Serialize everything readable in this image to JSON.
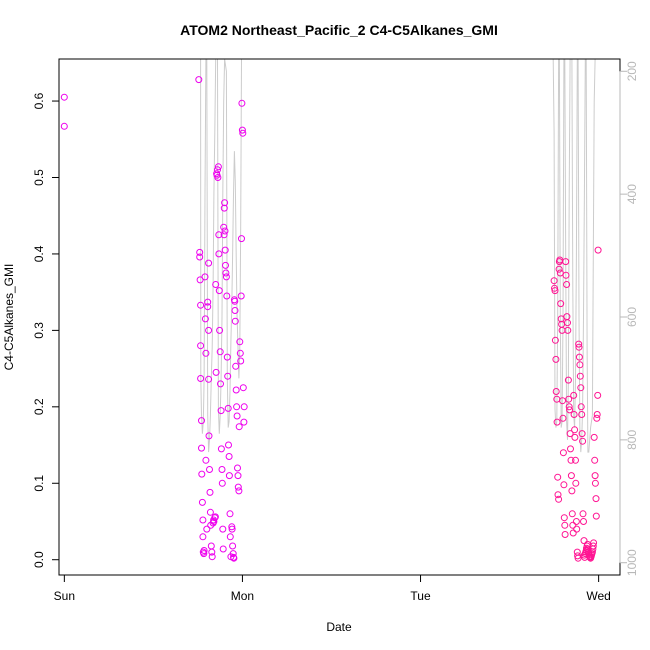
{
  "chart_data": {
    "type": "scatter",
    "title": "ATOM2 Northeast_Pacific_2 C4-C5Alkanes_GMI",
    "xlabel": "Date",
    "ylabel": "C4-C5Alkanes_GMI",
    "x_unit": "days since Sun 00:00",
    "xlim": [
      -0.03,
      3.12
    ],
    "ylim": [
      -0.02,
      0.655
    ],
    "x_ticks": [
      {
        "value": 0,
        "label": "Sun"
      },
      {
        "value": 1,
        "label": "Mon"
      },
      {
        "value": 2,
        "label": "Tue"
      },
      {
        "value": 3,
        "label": "Wed"
      }
    ],
    "y_ticks": [
      0.0,
      0.1,
      0.2,
      0.3,
      0.4,
      0.5,
      0.6
    ],
    "y_tick_labels": [
      "0.0",
      "0.1",
      "0.2",
      "0.3",
      "0.4",
      "0.5",
      "0.6"
    ],
    "right_axis": {
      "reversed": true,
      "lim": [
        1020,
        180
      ],
      "ticks": [
        200,
        400,
        600,
        800,
        1000
      ],
      "tick_labels": [
        "200",
        "400",
        "600",
        "800",
        "1000"
      ],
      "color": "#b8b8b8"
    },
    "colors": {
      "points_early": "#ee00ee",
      "points_late": "#ff1493",
      "pressure_line": "#cccccc"
    },
    "series": [
      {
        "name": "",
        "type": "scatter",
        "points": [
          [
            0.0,
            0.605
          ],
          [
            0.0,
            0.567
          ],
          [
            0.755,
            0.628
          ],
          [
            0.76,
            0.402
          ],
          [
            0.76,
            0.396
          ],
          [
            0.762,
            0.366
          ],
          [
            0.765,
            0.333
          ],
          [
            0.765,
            0.28
          ],
          [
            0.765,
            0.237
          ],
          [
            0.77,
            0.182
          ],
          [
            0.77,
            0.146
          ],
          [
            0.772,
            0.112
          ],
          [
            0.775,
            0.075
          ],
          [
            0.778,
            0.052
          ],
          [
            0.778,
            0.03
          ],
          [
            0.78,
            0.01
          ],
          [
            0.783,
            0.008
          ],
          [
            0.785,
            0.012
          ],
          [
            0.79,
            0.37
          ],
          [
            0.792,
            0.315
          ],
          [
            0.795,
            0.27
          ],
          [
            0.795,
            0.13
          ],
          [
            0.8,
            0.04
          ],
          [
            0.805,
            0.337
          ],
          [
            0.805,
            0.331
          ],
          [
            0.81,
            0.388
          ],
          [
            0.81,
            0.3
          ],
          [
            0.81,
            0.236
          ],
          [
            0.812,
            0.162
          ],
          [
            0.815,
            0.118
          ],
          [
            0.818,
            0.088
          ],
          [
            0.82,
            0.062
          ],
          [
            0.822,
            0.045
          ],
          [
            0.825,
            0.018
          ],
          [
            0.828,
            0.01
          ],
          [
            0.83,
            0.004
          ],
          [
            0.835,
            0.048
          ],
          [
            0.838,
            0.052
          ],
          [
            0.84,
            0.05
          ],
          [
            0.845,
            0.055
          ],
          [
            0.848,
            0.056
          ],
          [
            0.85,
            0.36
          ],
          [
            0.852,
            0.245
          ],
          [
            0.855,
            0.505
          ],
          [
            0.857,
            0.503
          ],
          [
            0.86,
            0.51
          ],
          [
            0.862,
            0.5
          ],
          [
            0.865,
            0.514
          ],
          [
            0.867,
            0.425
          ],
          [
            0.868,
            0.4
          ],
          [
            0.87,
            0.352
          ],
          [
            0.872,
            0.3
          ],
          [
            0.875,
            0.272
          ],
          [
            0.877,
            0.23
          ],
          [
            0.88,
            0.195
          ],
          [
            0.882,
            0.145
          ],
          [
            0.885,
            0.118
          ],
          [
            0.887,
            0.1
          ],
          [
            0.89,
            0.04
          ],
          [
            0.892,
            0.014
          ],
          [
            0.895,
            0.435
          ],
          [
            0.897,
            0.425
          ],
          [
            0.898,
            0.46
          ],
          [
            0.9,
            0.467
          ],
          [
            0.902,
            0.43
          ],
          [
            0.903,
            0.405
          ],
          [
            0.905,
            0.385
          ],
          [
            0.907,
            0.375
          ],
          [
            0.91,
            0.37
          ],
          [
            0.912,
            0.345
          ],
          [
            0.915,
            0.265
          ],
          [
            0.917,
            0.24
          ],
          [
            0.92,
            0.198
          ],
          [
            0.922,
            0.15
          ],
          [
            0.925,
            0.135
          ],
          [
            0.927,
            0.11
          ],
          [
            0.93,
            0.06
          ],
          [
            0.932,
            0.03
          ],
          [
            0.935,
            0.004
          ],
          [
            0.94,
            0.043
          ],
          [
            0.942,
            0.04
          ],
          [
            0.945,
            0.018
          ],
          [
            0.948,
            0.008
          ],
          [
            0.95,
            0.003
          ],
          [
            0.952,
            0.002
          ],
          [
            0.955,
            0.34
          ],
          [
            0.957,
            0.338
          ],
          [
            0.958,
            0.326
          ],
          [
            0.96,
            0.312
          ],
          [
            0.962,
            0.253
          ],
          [
            0.965,
            0.222
          ],
          [
            0.967,
            0.2
          ],
          [
            0.97,
            0.188
          ],
          [
            0.972,
            0.12
          ],
          [
            0.975,
            0.11
          ],
          [
            0.977,
            0.095
          ],
          [
            0.98,
            0.09
          ],
          [
            0.982,
            0.174
          ],
          [
            0.985,
            0.285
          ],
          [
            0.988,
            0.27
          ],
          [
            0.99,
            0.26
          ],
          [
            0.993,
            0.345
          ],
          [
            0.995,
            0.42
          ],
          [
            0.997,
            0.597
          ],
          [
            1.0,
            0.562
          ],
          [
            1.002,
            0.558
          ],
          [
            1.005,
            0.225
          ],
          [
            1.008,
            0.18
          ],
          [
            1.01,
            0.2
          ]
        ]
      },
      {
        "name": "",
        "type": "scatter",
        "points": [
          [
            2.75,
            0.365
          ],
          [
            2.752,
            0.355
          ],
          [
            2.755,
            0.352
          ],
          [
            2.757,
            0.287
          ],
          [
            2.76,
            0.262
          ],
          [
            2.762,
            0.22
          ],
          [
            2.765,
            0.21
          ],
          [
            2.767,
            0.18
          ],
          [
            2.77,
            0.108
          ],
          [
            2.772,
            0.085
          ],
          [
            2.775,
            0.079
          ],
          [
            2.778,
            0.38
          ],
          [
            2.78,
            0.39
          ],
          [
            2.782,
            0.392
          ],
          [
            2.785,
            0.375
          ],
          [
            2.787,
            0.335
          ],
          [
            2.79,
            0.315
          ],
          [
            2.792,
            0.308
          ],
          [
            2.795,
            0.3
          ],
          [
            2.797,
            0.208
          ],
          [
            2.8,
            0.185
          ],
          [
            2.802,
            0.14
          ],
          [
            2.805,
            0.098
          ],
          [
            2.807,
            0.055
          ],
          [
            2.81,
            0.045
          ],
          [
            2.812,
            0.033
          ],
          [
            2.815,
            0.39
          ],
          [
            2.817,
            0.372
          ],
          [
            2.82,
            0.36
          ],
          [
            2.822,
            0.318
          ],
          [
            2.825,
            0.31
          ],
          [
            2.827,
            0.3
          ],
          [
            2.83,
            0.235
          ],
          [
            2.832,
            0.21
          ],
          [
            2.835,
            0.2
          ],
          [
            2.837,
            0.196
          ],
          [
            2.84,
            0.165
          ],
          [
            2.842,
            0.145
          ],
          [
            2.845,
            0.13
          ],
          [
            2.847,
            0.11
          ],
          [
            2.85,
            0.09
          ],
          [
            2.852,
            0.06
          ],
          [
            2.855,
            0.045
          ],
          [
            2.857,
            0.035
          ],
          [
            2.86,
            0.215
          ],
          [
            2.862,
            0.19
          ],
          [
            2.865,
            0.17
          ],
          [
            2.867,
            0.16
          ],
          [
            2.87,
            0.13
          ],
          [
            2.872,
            0.1
          ],
          [
            2.875,
            0.05
          ],
          [
            2.877,
            0.04
          ],
          [
            2.88,
            0.01
          ],
          [
            2.882,
            0.005
          ],
          [
            2.885,
            0.002
          ],
          [
            2.888,
            0.282
          ],
          [
            2.89,
            0.278
          ],
          [
            2.892,
            0.265
          ],
          [
            2.895,
            0.255
          ],
          [
            2.897,
            0.24
          ],
          [
            2.9,
            0.225
          ],
          [
            2.902,
            0.2
          ],
          [
            2.905,
            0.19
          ],
          [
            2.907,
            0.165
          ],
          [
            2.91,
            0.155
          ],
          [
            2.912,
            0.06
          ],
          [
            2.915,
            0.05
          ],
          [
            2.918,
            0.025
          ],
          [
            2.92,
            0.006
          ],
          [
            2.922,
            0.003
          ],
          [
            2.925,
            0.008
          ],
          [
            2.928,
            0.01
          ],
          [
            2.93,
            0.012
          ],
          [
            2.932,
            0.015
          ],
          [
            2.935,
            0.018
          ],
          [
            2.938,
            0.02
          ],
          [
            2.94,
            0.014
          ],
          [
            2.942,
            0.01
          ],
          [
            2.945,
            0.008
          ],
          [
            2.948,
            0.006
          ],
          [
            2.95,
            0.004
          ],
          [
            2.952,
            0.003
          ],
          [
            2.955,
            0.002
          ],
          [
            2.958,
            0.004
          ],
          [
            2.96,
            0.006
          ],
          [
            2.962,
            0.008
          ],
          [
            2.965,
            0.01
          ],
          [
            2.968,
            0.014
          ],
          [
            2.97,
            0.018
          ],
          [
            2.972,
            0.022
          ],
          [
            2.975,
            0.16
          ],
          [
            2.978,
            0.13
          ],
          [
            2.98,
            0.11
          ],
          [
            2.982,
            0.1
          ],
          [
            2.985,
            0.08
          ],
          [
            2.987,
            0.057
          ],
          [
            2.99,
            0.185
          ],
          [
            2.992,
            0.19
          ],
          [
            2.995,
            0.215
          ],
          [
            2.997,
            0.405
          ]
        ]
      },
      {
        "name": "",
        "type": "line",
        "axis": "right",
        "points": [
          [
            0.765,
            180
          ],
          [
            0.766,
            700
          ],
          [
            0.77,
            760
          ],
          [
            0.775,
            790
          ],
          [
            0.78,
            770
          ],
          [
            0.783,
            730
          ],
          [
            0.785,
            700
          ],
          [
            0.79,
            400
          ],
          [
            0.795,
            180
          ],
          [
            0.8,
            180
          ],
          [
            0.805,
            760
          ],
          [
            0.81,
            820
          ],
          [
            0.815,
            800
          ],
          [
            0.82,
            760
          ],
          [
            0.825,
            700
          ],
          [
            0.83,
            650
          ],
          [
            0.835,
            550
          ],
          [
            0.84,
            400
          ],
          [
            0.845,
            300
          ],
          [
            0.85,
            180
          ],
          [
            0.86,
            180
          ],
          [
            0.865,
            750
          ],
          [
            0.87,
            790
          ],
          [
            0.875,
            760
          ],
          [
            0.88,
            700
          ],
          [
            0.885,
            600
          ],
          [
            0.89,
            400
          ],
          [
            0.895,
            250
          ],
          [
            0.9,
            180
          ],
          [
            0.91,
            200
          ],
          [
            0.915,
            700
          ],
          [
            0.92,
            780
          ],
          [
            0.925,
            770
          ],
          [
            0.93,
            720
          ],
          [
            0.935,
            640
          ],
          [
            0.94,
            580
          ],
          [
            0.945,
            500
          ],
          [
            0.95,
            400
          ],
          [
            0.955,
            330
          ],
          [
            0.96,
            380
          ],
          [
            0.965,
            500
          ],
          [
            0.97,
            600
          ],
          [
            0.975,
            650
          ],
          [
            0.98,
            700
          ],
          [
            0.985,
            650
          ],
          [
            0.99,
            450
          ],
          [
            0.995,
            180
          ],
          [
            2.74,
            180
          ],
          [
            2.745,
            180
          ],
          [
            2.75,
            300
          ],
          [
            2.755,
            750
          ],
          [
            2.76,
            780
          ],
          [
            2.765,
            770
          ],
          [
            2.77,
            600
          ],
          [
            2.775,
            180
          ],
          [
            2.78,
            180
          ],
          [
            2.785,
            600
          ],
          [
            2.79,
            780
          ],
          [
            2.795,
            770
          ],
          [
            2.8,
            600
          ],
          [
            2.805,
            180
          ],
          [
            2.81,
            180
          ],
          [
            2.815,
            500
          ],
          [
            2.82,
            770
          ],
          [
            2.825,
            800
          ],
          [
            2.83,
            700
          ],
          [
            2.835,
            400
          ],
          [
            2.84,
            180
          ],
          [
            2.85,
            180
          ],
          [
            2.855,
            550
          ],
          [
            2.86,
            760
          ],
          [
            2.865,
            780
          ],
          [
            2.87,
            700
          ],
          [
            2.875,
            500
          ],
          [
            2.88,
            180
          ],
          [
            2.885,
            180
          ],
          [
            2.89,
            600
          ],
          [
            2.895,
            790
          ],
          [
            2.9,
            820
          ],
          [
            2.905,
            800
          ],
          [
            2.91,
            750
          ],
          [
            2.915,
            600
          ],
          [
            2.92,
            400
          ],
          [
            2.925,
            180
          ],
          [
            2.93,
            180
          ],
          [
            2.935,
            650
          ],
          [
            2.94,
            820
          ],
          [
            2.945,
            820
          ],
          [
            2.95,
            800
          ],
          [
            2.955,
            780
          ],
          [
            2.96,
            770
          ],
          [
            2.965,
            760
          ],
          [
            2.97,
            500
          ],
          [
            2.975,
            250
          ],
          [
            2.98,
            180
          ]
        ]
      }
    ]
  }
}
